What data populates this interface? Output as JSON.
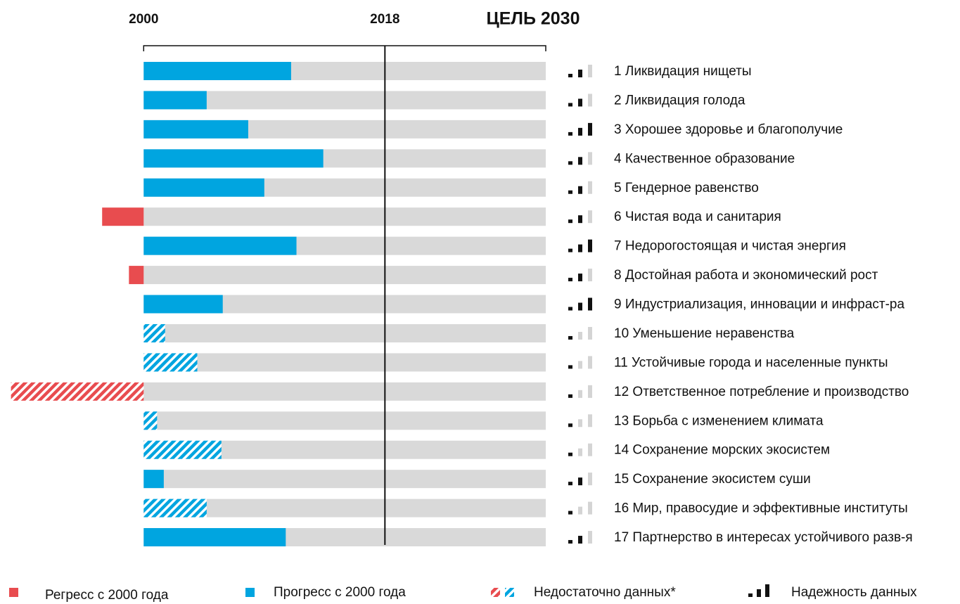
{
  "chart_data": {
    "type": "progress-bar",
    "categories": [
      "1 Ликвидация нищеты",
      "2 Ликвидация голода",
      "3 Хорошее здоровье и благополучие",
      "4 Качественное образование",
      "5 Гендерное равенство",
      "6 Чистая вода и санитария",
      "7 Недорогостоящая и чистая энергия",
      "8 Достойная работа и экономический рост",
      "9 Индустриализация, инновации и инфраст-ра",
      "10 Уменьшение неравенства",
      "11 Устойчивые города и населенные пункты",
      "12 Ответственное потребление и производство",
      "13 Борьба с изменением климата",
      "14 Сохранение морских экосистем",
      "15 Сохранение экосистем суши",
      "16 Мир, правосудие и эффективные институты",
      "17 Партнерство в интересах устойчивого разв-я"
    ],
    "values": [
      11.0,
      4.7,
      7.8,
      13.4,
      9.0,
      -3.1,
      11.4,
      -1.1,
      5.9,
      1.6,
      4.0,
      -9.9,
      1.0,
      5.8,
      1.5,
      4.7,
      10.6
    ],
    "insufficient_data": [
      false,
      false,
      false,
      false,
      false,
      false,
      false,
      false,
      false,
      true,
      true,
      true,
      true,
      true,
      false,
      true,
      false
    ],
    "reliability": [
      2,
      2,
      3,
      2,
      2,
      2,
      3,
      2,
      3,
      1,
      1,
      1,
      1,
      1,
      2,
      1,
      2
    ],
    "xlim": [
      -10.3,
      30
    ],
    "xticks": [
      {
        "value": 0,
        "label": "2000"
      },
      {
        "value": 18,
        "label": "2018"
      },
      {
        "value": 30,
        "label": "ЦЕЛЬ 2030"
      }
    ],
    "colors": {
      "progress": "#00a5e0",
      "regress": "#e84c4f",
      "track": "#d9d9d9",
      "reliable": "#111111",
      "unreliable": "#d4d4d4"
    },
    "legend": [
      "Регресс с 2000 года",
      "Прогресс с 2000 года",
      "Недостаточно данных*",
      "Надежность данных"
    ]
  }
}
